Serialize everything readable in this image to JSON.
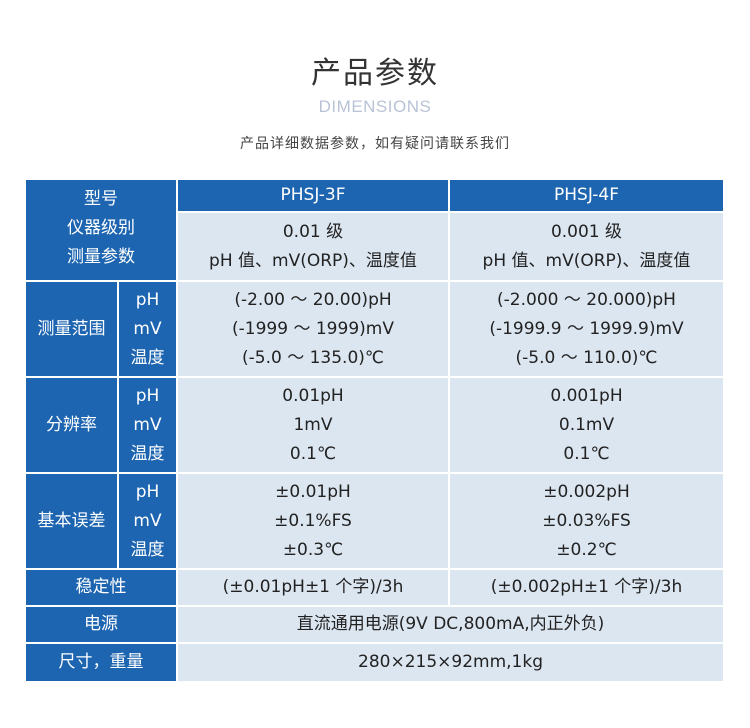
{
  "header": {
    "title": "产品参数",
    "subtitle": "DIMENSIONS",
    "description": "产品详细数据参数，如有疑问请联系我们"
  },
  "colors": {
    "header_blue": "#1d65b1",
    "cell_light": "#dce6f1"
  },
  "table": {
    "model_label": "型号",
    "models": [
      "PHSJ-3F",
      "PHSJ-4F"
    ],
    "grade_label": "仪器级别",
    "grades": [
      "0.01 级",
      "0.001 级"
    ],
    "params_label": "测量参数",
    "params": [
      "pH 值、mV(ORP)、温度值",
      "pH 值、mV(ORP)、温度值"
    ],
    "sub_labels": [
      "pH",
      "mV",
      "温度"
    ],
    "range": {
      "label": "测量范围",
      "col1": [
        "(-2.00 ～ 20.00)pH",
        "(-1999 ～ 1999)mV",
        "(-5.0 ～ 135.0)℃"
      ],
      "col2": [
        "(-2.000 ～ 20.000)pH",
        "(-1999.9 ～ 1999.9)mV",
        "(-5.0 ～ 110.0)℃"
      ]
    },
    "resolution": {
      "label": "分辨率",
      "col1": [
        "0.01pH",
        "1mV",
        "0.1℃"
      ],
      "col2": [
        "0.001pH",
        "0.1mV",
        "0.1℃"
      ]
    },
    "error": {
      "label": "基本误差",
      "col1": [
        "±0.01pH",
        "±0.1%FS",
        "±0.3℃"
      ],
      "col2": [
        "±0.002pH",
        "±0.03%FS",
        "±0.2℃"
      ]
    },
    "stability": {
      "label": "稳定性",
      "col1": "(±0.01pH±1 个字)/3h",
      "col2": "(±0.002pH±1 个字)/3h"
    },
    "power": {
      "label": "电源",
      "value": "直流通用电源(9V DC,800mA,内正外负)"
    },
    "size": {
      "label": "尺寸，重量",
      "value": "280×215×92mm,1kg"
    }
  }
}
